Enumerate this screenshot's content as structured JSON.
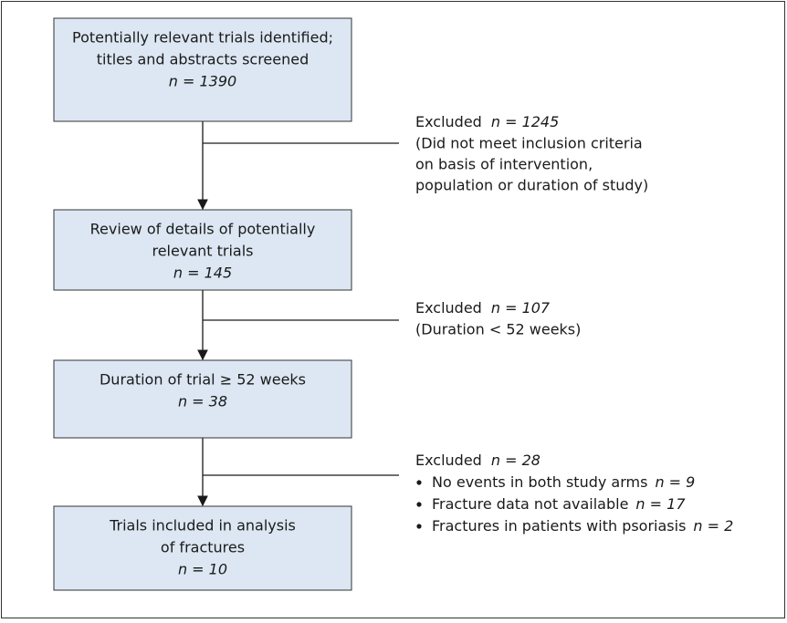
{
  "boxes": [
    {
      "lines": [
        "Potentially relevant trials identified;",
        "titles and abstracts screened"
      ],
      "count": "n = 1390"
    },
    {
      "lines": [
        "Review of details of potentially",
        "relevant trials"
      ],
      "count": "n = 145"
    },
    {
      "lines": [
        "Duration of trial ≥ 52 weeks"
      ],
      "count": "n = 38"
    },
    {
      "lines": [
        "Trials included in analysis",
        "of fractures"
      ],
      "count": "n = 10"
    }
  ],
  "exclusions": [
    {
      "label": "Excluded",
      "count": "n = 1245",
      "details": [
        "(Did not meet inclusion criteria",
        "on basis of intervention,",
        "population or duration of study)"
      ]
    },
    {
      "label": "Excluded",
      "count": "n = 107",
      "details": [
        "(Duration < 52 weeks)"
      ]
    },
    {
      "label": "Excluded",
      "count": "n = 28",
      "items": [
        {
          "text": "No events in both study arms",
          "count": "n = 9"
        },
        {
          "text": "Fracture data not available",
          "count": "n = 17"
        },
        {
          "text": "Fractures in patients with psoriasis",
          "count": "n = 2"
        }
      ]
    }
  ]
}
